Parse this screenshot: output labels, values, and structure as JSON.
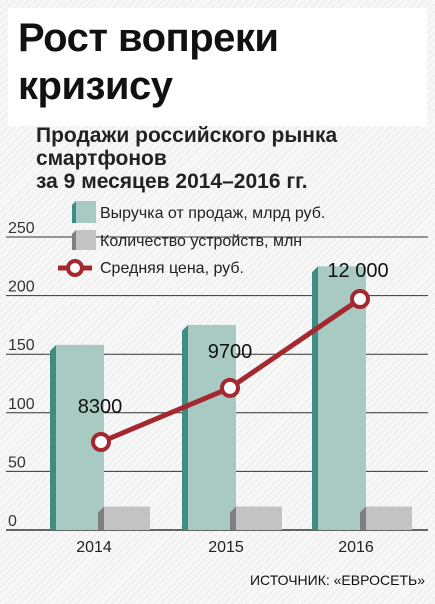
{
  "title": "Рост вопреки кризису",
  "subtitle": {
    "line1": "Продажи российского рынка",
    "line2": "смартфонов",
    "line3": "за 9 месяцев 2014–2016 гг."
  },
  "source": "ИСТОЧНИК: «ЕВРОСЕТЬ»",
  "colors": {
    "revenue": "#a9c9c3",
    "revenue_dark": "#3f8c83",
    "units": "#c3c3c3",
    "units_dark": "#7f7f7f",
    "price": "#a3282f"
  },
  "chart_data": {
    "type": "bar",
    "categories": [
      "2014",
      "2015",
      "2016"
    ],
    "ylim": [
      0,
      250
    ],
    "yticks": [
      0,
      50,
      100,
      150,
      200,
      250
    ],
    "series": [
      {
        "name": "Выручка от продаж, млрд руб.",
        "type": "bar",
        "values": [
          158,
          175,
          225
        ]
      },
      {
        "name": "Количество устройств, млн",
        "type": "bar",
        "values": [
          20,
          20,
          20
        ]
      },
      {
        "name": "Средняя цена, руб.",
        "type": "line",
        "values": [
          8300,
          9700,
          12000
        ],
        "labels": [
          "8300",
          "9700",
          "12 000"
        ]
      }
    ]
  }
}
